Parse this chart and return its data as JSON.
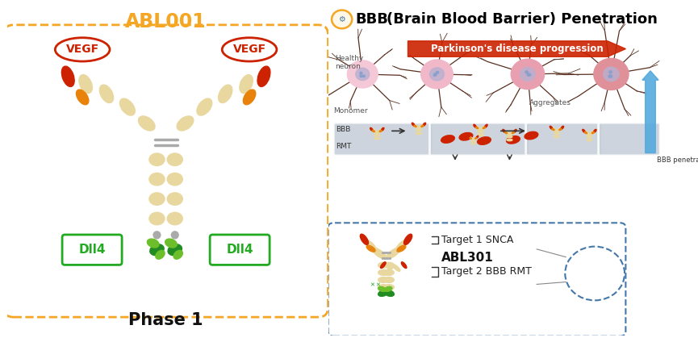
{
  "title_left": "ABL001",
  "title_left_color": "#F5A623",
  "title_right_bold": "BBB",
  "title_right_normal": "(Brain Blood Barrier) Penetration",
  "phase_text": "Phase 1",
  "vegf_label": "VEGF",
  "dll4_label": "Dll4",
  "vegf_color": "#CC2200",
  "dll4_color": "#22AA22",
  "antibody_body_color": "#E8D8A0",
  "orange_color": "#E8820A",
  "hinge_color": "#AAAAAA",
  "left_box_border": "#F5A623",
  "dll4_box_border": "#22AA22",
  "target1_text": "Target 1 SNCA",
  "abl301_text": "ABL301",
  "target2_text": "Target 2 BBB RMT",
  "parkinsons_text": "Parkinson's disease progression",
  "parkinsons_color": "#CC2200",
  "healthy_neuron_text": "Healthy\nneuron",
  "monomer_text": "Monomer",
  "aggregates_text": "Aggregates",
  "bbb_text": "BBB",
  "rmt_text": "RMT",
  "bbb_penetrance_text": "BBB penetrance",
  "arrow_blue": "#55AADD",
  "bbb_layer_color": "#C5CDD8",
  "fig_width": 8.65,
  "fig_height": 4.24,
  "background": "#FFFFFF"
}
